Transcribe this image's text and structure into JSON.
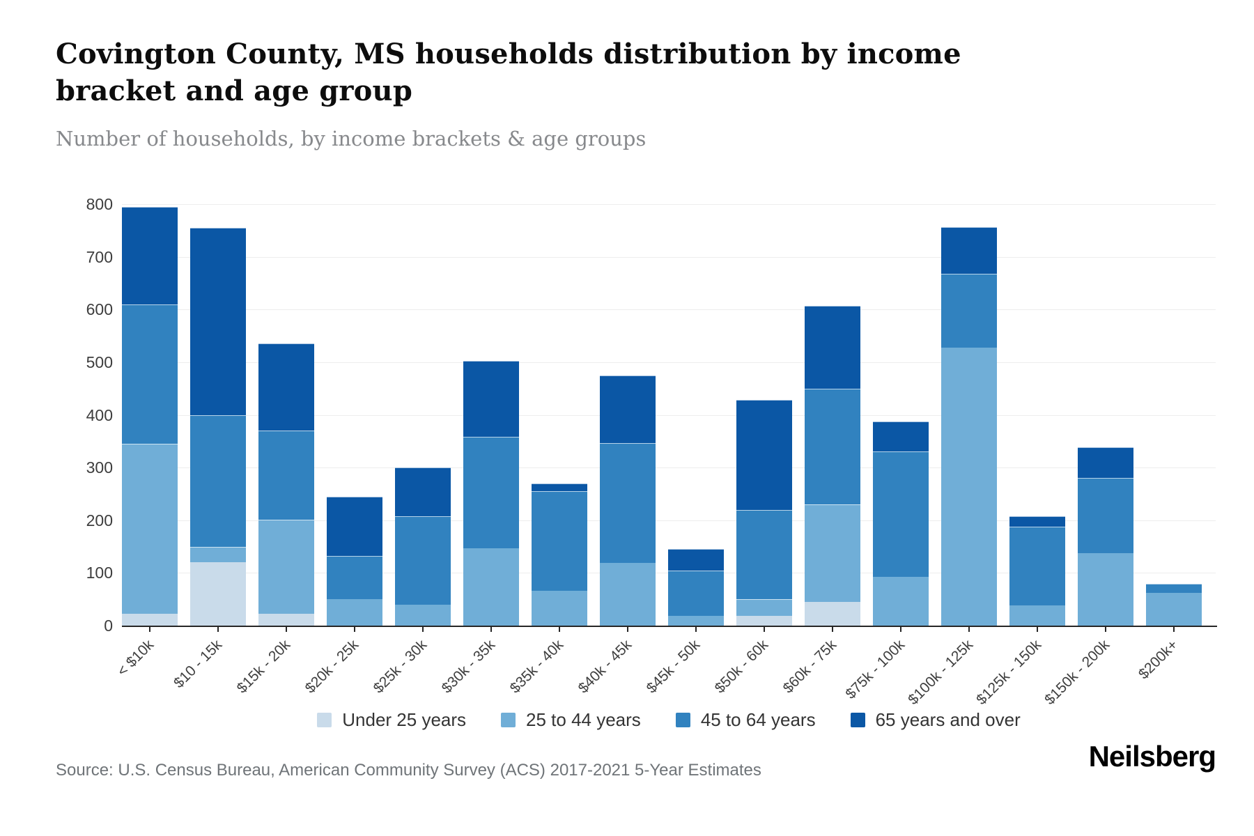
{
  "header": {
    "title": "Covington County, MS households distribution by income bracket and age group",
    "subtitle": "Number of households, by income brackets & age groups"
  },
  "footer": {
    "source": "Source: U.S. Census Bureau, American Community Survey (ACS) 2017-2021 5-Year Estimates",
    "logo": "Neilsberg"
  },
  "chart_data": {
    "type": "bar",
    "stacked": true,
    "title": "Covington County, MS households distribution by income bracket and age group",
    "subtitle": "Number of households, by income brackets & age groups",
    "xlabel": "",
    "ylabel": "",
    "ylim": [
      0,
      800
    ],
    "yticks": [
      0,
      100,
      200,
      300,
      400,
      500,
      600,
      700,
      800
    ],
    "grid": true,
    "legend_position": "bottom",
    "categories": [
      "< $10k",
      "$10 - 15k",
      "$15k - 20k",
      "$20k - 25k",
      "$25k - 30k",
      "$30k - 35k",
      "$35k - 40k",
      "$40k - 45k",
      "$45k - 50k",
      "$50k - 60k",
      "$60k - 75k",
      "$75k - 100k",
      "$100k - 125k",
      "$125k - 150k",
      "$150k - 200k",
      "$200k+"
    ],
    "series": [
      {
        "name": "Under 25 years",
        "color": "#c9dbea",
        "values": [
          23,
          120,
          23,
          0,
          0,
          0,
          0,
          0,
          0,
          18,
          45,
          0,
          0,
          0,
          0,
          0
        ]
      },
      {
        "name": "25 to 44 years",
        "color": "#70aed7",
        "values": [
          322,
          30,
          178,
          50,
          40,
          147,
          66,
          119,
          19,
          32,
          185,
          93,
          527,
          38,
          138,
          62
        ]
      },
      {
        "name": "45 to 64 years",
        "color": "#3182bf",
        "values": [
          265,
          250,
          169,
          82,
          167,
          211,
          189,
          228,
          86,
          170,
          220,
          237,
          141,
          150,
          142,
          18
        ]
      },
      {
        "name": "65 years and over",
        "color": "#0b57a5",
        "values": [
          185,
          355,
          165,
          113,
          93,
          144,
          15,
          128,
          40,
          208,
          157,
          58,
          89,
          19,
          58,
          0
        ]
      }
    ],
    "totals": [
      795,
      755,
      535,
      245,
      300,
      502,
      270,
      475,
      145,
      428,
      607,
      388,
      757,
      207,
      338,
      80
    ]
  }
}
